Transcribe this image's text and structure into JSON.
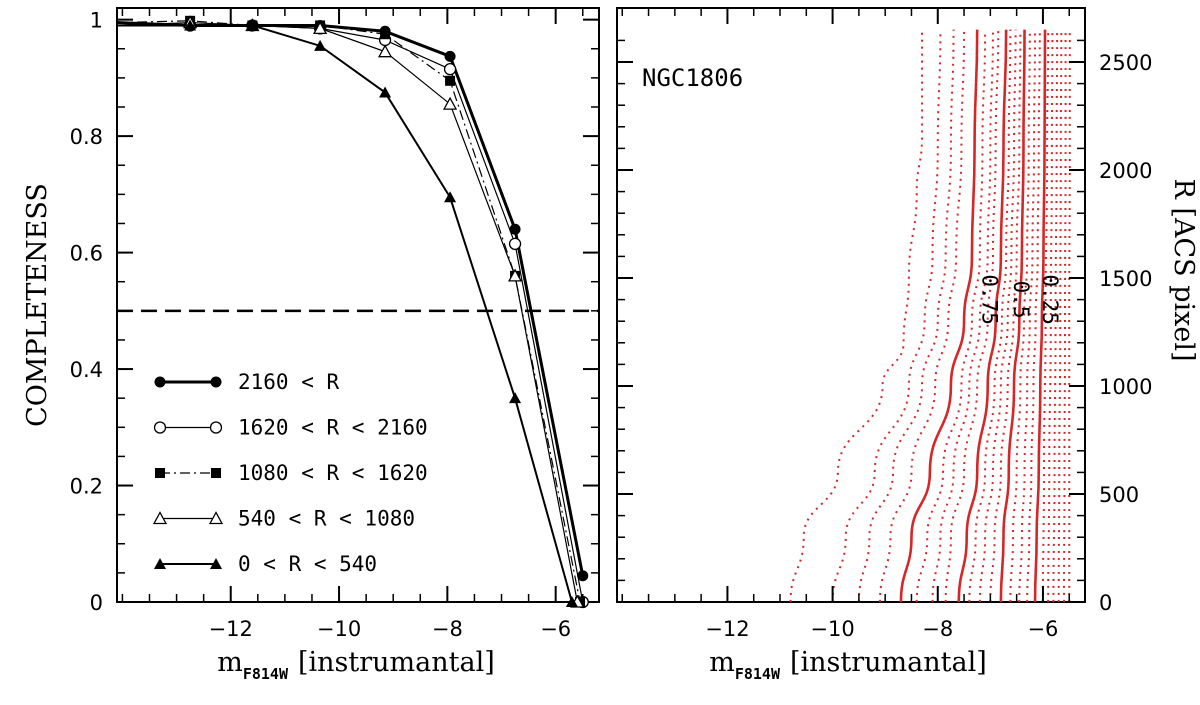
{
  "chart_data": [
    {
      "type": "line",
      "xlabel_main": "m",
      "xlabel_sub": "F814W",
      "xlabel_rest": "[instrumantal]",
      "ylabel": "COMPLETENESS",
      "xlim": [
        -14.1,
        -5.2
      ],
      "ylim": [
        0,
        1.02
      ],
      "x_ticks": [
        -12,
        -10,
        -8,
        -6
      ],
      "x_ticks_minor": [
        -14,
        -13.5,
        -13,
        -12.5,
        -11.5,
        -11,
        -10.5,
        -9.5,
        -9,
        -8.5,
        -7.5,
        -7,
        -6.5,
        -5.5
      ],
      "y_ticks": [
        0,
        0.2,
        0.4,
        0.6,
        0.8,
        1
      ],
      "y_tick_labels": [
        "0",
        "0.2",
        "0.4",
        "0.6",
        "0.8",
        "1"
      ],
      "reference_line": {
        "y": 0.5,
        "style": "dashed"
      },
      "legend_position": "bottom-left",
      "series": [
        {
          "name": "2160 < R",
          "marker": "filled-circle",
          "line": "solid-thick",
          "x": [
            -14.1,
            -12.75,
            -11.6,
            -10.35,
            -9.15,
            -7.95,
            -6.75,
            -5.5
          ],
          "y": [
            0.995,
            0.99,
            0.99,
            0.99,
            0.98,
            0.937,
            0.64,
            0.045
          ]
        },
        {
          "name": "1620 < R < 2160",
          "marker": "open-circle",
          "line": "solid-thin",
          "x": [
            -14.1,
            -12.75,
            -11.6,
            -10.35,
            -9.15,
            -7.95,
            -6.75,
            -5.5
          ],
          "y": [
            0.99,
            0.99,
            0.99,
            0.985,
            0.965,
            0.915,
            0.615,
            0.0
          ]
        },
        {
          "name": "1080 < R < 1620",
          "marker": "filled-square",
          "line": "dash-dot",
          "x": [
            -14.1,
            -12.75,
            -11.6,
            -10.35,
            -9.15,
            -7.95,
            -6.75,
            -5.55
          ],
          "y": [
            0.995,
            0.998,
            0.99,
            0.99,
            0.975,
            0.895,
            0.56,
            0.0
          ]
        },
        {
          "name": "540 < R < 1080",
          "marker": "open-triangle",
          "line": "solid-thin",
          "x": [
            -14.1,
            -12.75,
            -11.6,
            -10.35,
            -9.15,
            -7.95,
            -6.75,
            -5.6
          ],
          "y": [
            0.99,
            0.995,
            0.99,
            0.985,
            0.945,
            0.855,
            0.56,
            0.0
          ]
        },
        {
          "name": "0 < R < 540",
          "marker": "filled-triangle",
          "line": "solid-medium",
          "x": [
            -14.1,
            -12.75,
            -11.6,
            -10.35,
            -9.15,
            -7.95,
            -6.75,
            -5.7
          ],
          "y": [
            0.99,
            0.99,
            0.99,
            0.955,
            0.875,
            0.695,
            0.35,
            0.0
          ]
        }
      ]
    },
    {
      "type": "line",
      "title": "NGC1806",
      "xlabel_main": "m",
      "xlabel_sub": "F814W",
      "xlabel_rest": "[instrumantal]",
      "ylabel": "R [ACS pixel]",
      "xlim": [
        -14.1,
        -5.2
      ],
      "ylim": [
        0,
        2750
      ],
      "x_ticks": [
        -12,
        -10,
        -8,
        -6
      ],
      "x_ticks_minor": [
        -14,
        -13.5,
        -13,
        -12.5,
        -11.5,
        -11,
        -10.5,
        -9.5,
        -9,
        -8.5,
        -7.5,
        -7,
        -6.5,
        -5.5
      ],
      "y_ticks": [
        0,
        500,
        1000,
        1500,
        2000,
        2500
      ],
      "y_ticks_minor": [
        100,
        200,
        300,
        400,
        600,
        700,
        800,
        900,
        1100,
        1200,
        1300,
        1400,
        1600,
        1700,
        1800,
        1900,
        2100,
        2200,
        2300,
        2400,
        2600
      ],
      "line_color": "#d62728",
      "contour_labels": [
        {
          "text": "0.75",
          "x": -7.15,
          "y": 1400
        },
        {
          "text": "0.5",
          "x": -6.55,
          "y": 1400
        },
        {
          "text": "0.25",
          "x": -6.0,
          "y": 1400
        }
      ],
      "contours": [
        {
          "style": "dotted",
          "points": [
            [
              -10.8,
              0
            ],
            [
              -10.55,
              300
            ],
            [
              -9.9,
              600
            ],
            [
              -9.05,
              1000
            ],
            [
              -8.65,
              1200
            ],
            [
              -8.55,
              1500
            ],
            [
              -8.4,
              1900
            ],
            [
              -8.3,
              2150
            ],
            [
              -8.3,
              2650
            ]
          ]
        },
        {
          "style": "dotted",
          "points": [
            [
              -10.0,
              0
            ],
            [
              -9.75,
              300
            ],
            [
              -9.2,
              600
            ],
            [
              -8.55,
              1000
            ],
            [
              -8.25,
              1300
            ],
            [
              -8.1,
              1600
            ],
            [
              -8.0,
              2100
            ],
            [
              -7.95,
              2650
            ]
          ]
        },
        {
          "style": "dotted",
          "points": [
            [
              -9.5,
              0
            ],
            [
              -9.3,
              300
            ],
            [
              -8.85,
              600
            ],
            [
              -8.3,
              1000
            ],
            [
              -8.0,
              1300
            ],
            [
              -7.85,
              1600
            ],
            [
              -7.75,
              2100
            ],
            [
              -7.7,
              2650
            ]
          ]
        },
        {
          "style": "dotted",
          "points": [
            [
              -9.1,
              0
            ],
            [
              -8.9,
              300
            ],
            [
              -8.5,
              600
            ],
            [
              -8.05,
              1000
            ],
            [
              -7.8,
              1300
            ],
            [
              -7.65,
              1600
            ],
            [
              -7.55,
              2100
            ],
            [
              -7.5,
              2650
            ]
          ]
        },
        {
          "style": "solid",
          "points": [
            [
              -8.7,
              0
            ],
            [
              -8.5,
              300
            ],
            [
              -8.15,
              600
            ],
            [
              -7.75,
              1000
            ],
            [
              -7.5,
              1300
            ],
            [
              -7.35,
              1600
            ],
            [
              -7.3,
              2100
            ],
            [
              -7.25,
              2650
            ]
          ]
        },
        {
          "style": "dotted",
          "points": [
            [
              -8.4,
              0
            ],
            [
              -8.2,
              300
            ],
            [
              -7.9,
              600
            ],
            [
              -7.55,
              1000
            ],
            [
              -7.35,
              1300
            ],
            [
              -7.2,
              1600
            ],
            [
              -7.15,
              2100
            ],
            [
              -7.1,
              2650
            ]
          ]
        },
        {
          "style": "dotted",
          "points": [
            [
              -8.1,
              0
            ],
            [
              -7.95,
              300
            ],
            [
              -7.7,
              600
            ],
            [
              -7.4,
              1000
            ],
            [
              -7.2,
              1300
            ],
            [
              -7.05,
              1600
            ],
            [
              -7.0,
              2100
            ],
            [
              -6.95,
              2650
            ]
          ]
        },
        {
          "style": "dotted",
          "points": [
            [
              -7.85,
              0
            ],
            [
              -7.75,
              300
            ],
            [
              -7.5,
              600
            ],
            [
              -7.25,
              1000
            ],
            [
              -7.05,
              1300
            ],
            [
              -6.95,
              1600
            ],
            [
              -6.9,
              2100
            ],
            [
              -6.85,
              2650
            ]
          ]
        },
        {
          "style": "solid",
          "points": [
            [
              -7.6,
              0
            ],
            [
              -7.45,
              300
            ],
            [
              -7.25,
              600
            ],
            [
              -7.05,
              1000
            ],
            [
              -6.9,
              1300
            ],
            [
              -6.8,
              1600
            ],
            [
              -6.75,
              2100
            ],
            [
              -6.7,
              2650
            ]
          ]
        },
        {
          "style": "dotted",
          "points": [
            [
              -7.4,
              0
            ],
            [
              -7.28,
              300
            ],
            [
              -7.1,
              600
            ],
            [
              -6.92,
              1000
            ],
            [
              -6.78,
              1300
            ],
            [
              -6.7,
              1600
            ],
            [
              -6.65,
              2100
            ],
            [
              -6.62,
              2650
            ]
          ]
        },
        {
          "style": "dotted",
          "points": [
            [
              -7.2,
              0
            ],
            [
              -7.1,
              300
            ],
            [
              -6.95,
              600
            ],
            [
              -6.8,
              1000
            ],
            [
              -6.67,
              1300
            ],
            [
              -6.6,
              1600
            ],
            [
              -6.55,
              2100
            ],
            [
              -6.52,
              2650
            ]
          ]
        },
        {
          "style": "dotted",
          "points": [
            [
              -7.0,
              0
            ],
            [
              -6.92,
              300
            ],
            [
              -6.8,
              600
            ],
            [
              -6.67,
              1000
            ],
            [
              -6.56,
              1300
            ],
            [
              -6.5,
              1600
            ],
            [
              -6.45,
              2100
            ],
            [
              -6.43,
              2650
            ]
          ]
        },
        {
          "style": "solid",
          "points": [
            [
              -6.8,
              0
            ],
            [
              -6.75,
              300
            ],
            [
              -6.65,
              600
            ],
            [
              -6.55,
              1000
            ],
            [
              -6.45,
              1300
            ],
            [
              -6.4,
              1600
            ],
            [
              -6.37,
              2100
            ],
            [
              -6.35,
              2650
            ]
          ]
        },
        {
          "style": "dotted",
          "points": [
            [
              -6.62,
              0
            ],
            [
              -6.57,
              300
            ],
            [
              -6.5,
              600
            ],
            [
              -6.43,
              1000
            ],
            [
              -6.36,
              1300
            ],
            [
              -6.3,
              1600
            ],
            [
              -6.27,
              2100
            ],
            [
              -6.25,
              2650
            ]
          ]
        },
        {
          "style": "dotted",
          "points": [
            [
              -6.45,
              0
            ],
            [
              -6.4,
              300
            ],
            [
              -6.35,
              600
            ],
            [
              -6.3,
              1000
            ],
            [
              -6.25,
              1300
            ],
            [
              -6.2,
              1600
            ],
            [
              -6.17,
              2100
            ],
            [
              -6.15,
              2650
            ]
          ]
        },
        {
          "style": "dotted",
          "points": [
            [
              -6.3,
              0
            ],
            [
              -6.26,
              300
            ],
            [
              -6.22,
              600
            ],
            [
              -6.18,
              1000
            ],
            [
              -6.14,
              1300
            ],
            [
              -6.1,
              1600
            ],
            [
              -6.08,
              2100
            ],
            [
              -6.06,
              2650
            ]
          ]
        },
        {
          "style": "solid",
          "points": [
            [
              -6.15,
              0
            ],
            [
              -6.12,
              300
            ],
            [
              -6.08,
              600
            ],
            [
              -6.05,
              1000
            ],
            [
              -6.02,
              1300
            ],
            [
              -5.99,
              1600
            ],
            [
              -5.97,
              2100
            ],
            [
              -5.96,
              2650
            ]
          ]
        },
        {
          "style": "dotted",
          "points": [
            [
              -6.0,
              0
            ],
            [
              -5.98,
              600
            ],
            [
              -5.95,
              1300
            ],
            [
              -5.92,
              2100
            ],
            [
              -5.9,
              2650
            ]
          ]
        },
        {
          "style": "dotted",
          "points": [
            [
              -5.9,
              0
            ],
            [
              -5.88,
              600
            ],
            [
              -5.85,
              1300
            ],
            [
              -5.83,
              2100
            ],
            [
              -5.82,
              2650
            ]
          ]
        },
        {
          "style": "dotted",
          "points": [
            [
              -5.8,
              0
            ],
            [
              -5.78,
              600
            ],
            [
              -5.76,
              1300
            ],
            [
              -5.74,
              2100
            ],
            [
              -5.73,
              2650
            ]
          ]
        },
        {
          "style": "dotted",
          "points": [
            [
              -5.7,
              0
            ],
            [
              -5.69,
              600
            ],
            [
              -5.67,
              1300
            ],
            [
              -5.66,
              2100
            ],
            [
              -5.65,
              2650
            ]
          ]
        },
        {
          "style": "dotted",
          "points": [
            [
              -5.6,
              0
            ],
            [
              -5.59,
              600
            ],
            [
              -5.58,
              1300
            ],
            [
              -5.57,
              2100
            ],
            [
              -5.57,
              2650
            ]
          ]
        },
        {
          "style": "dotted",
          "points": [
            [
              -5.5,
              0
            ],
            [
              -5.5,
              600
            ],
            [
              -5.5,
              1300
            ],
            [
              -5.49,
              2100
            ],
            [
              -5.49,
              2650
            ]
          ]
        }
      ]
    }
  ]
}
